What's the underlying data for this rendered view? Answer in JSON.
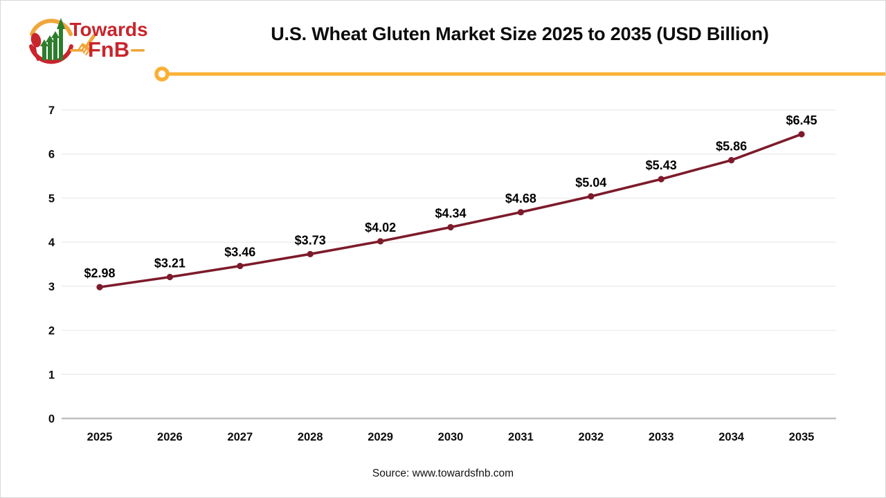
{
  "page": {
    "background": "#FFFFFF",
    "border_color": "#D8D8D8"
  },
  "brand": {
    "logo": {
      "word1": "Towards",
      "word2": "FnB"
    },
    "colors": {
      "red": "#C9252C",
      "green": "#2D7D2D",
      "gold": "#EFA73B"
    }
  },
  "header": {
    "title": "U.S. Wheat Gluten Market Size 2025 to 2035 (USD Billion)",
    "accent_color": "#FBB034"
  },
  "chart_data": {
    "type": "line",
    "title": "U.S. Wheat Gluten Market Size 2025 to 2035 (USD Billion)",
    "categories": [
      "2025",
      "2026",
      "2027",
      "2028",
      "2029",
      "2030",
      "2031",
      "2032",
      "2033",
      "2034",
      "2035"
    ],
    "series": [
      {
        "name": "U.S. Wheat Gluten Market Size (USD Billion)",
        "values": [
          2.98,
          3.21,
          3.46,
          3.73,
          4.02,
          4.34,
          4.68,
          5.04,
          5.43,
          5.86,
          6.45
        ]
      }
    ],
    "data_labels": [
      "$2.98",
      "$3.21",
      "$3.46",
      "$3.73",
      "$4.02",
      "$4.34",
      "$4.68",
      "$5.04",
      "$5.43",
      "$5.86",
      "$6.45"
    ],
    "xlabel": "",
    "ylabel": "",
    "ylim": [
      0,
      7
    ],
    "yticks": [
      "0",
      "1",
      "2",
      "3",
      "4",
      "5",
      "6",
      "7"
    ],
    "grid": true,
    "legend": "none",
    "line_color": "#7D1B2B",
    "marker": "circle",
    "grid_color": "#EAEAEA",
    "axis_color": "#BFBFBF",
    "tick_label_color": "#0c0c0c",
    "data_label_color": "#000000"
  },
  "footer": {
    "source": "Source: www.towardsfnb.com"
  }
}
